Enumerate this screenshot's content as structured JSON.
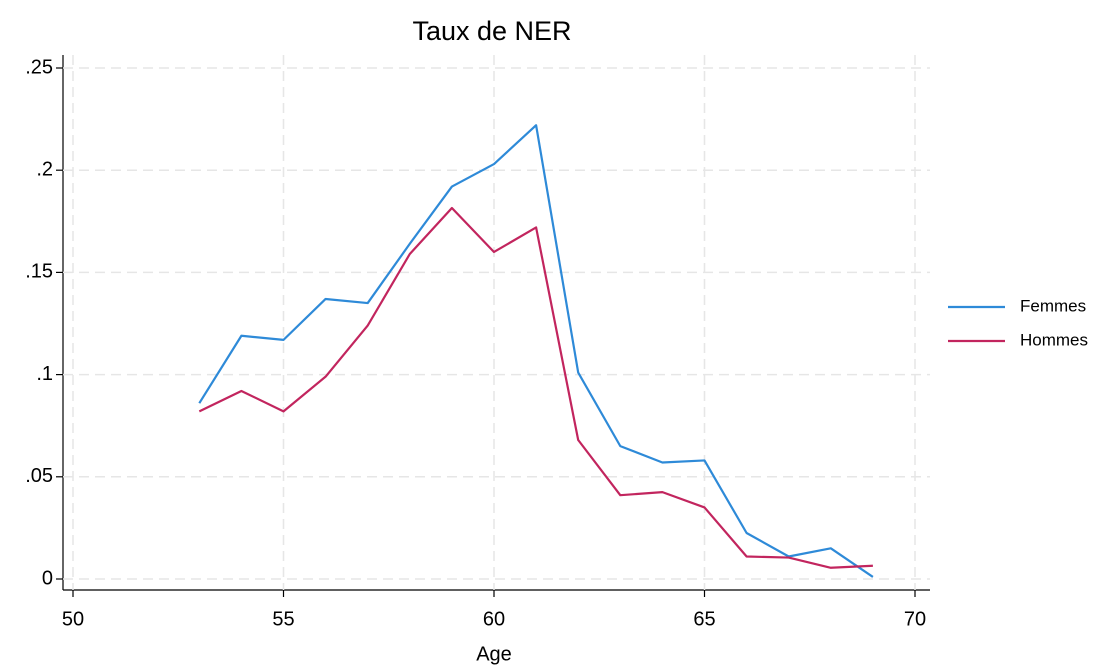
{
  "chart_data": {
    "type": "line",
    "title": "Taux de NER",
    "xlabel": "Age",
    "x": [
      53,
      54,
      55,
      56,
      57,
      58,
      59,
      60,
      61,
      62,
      63,
      64,
      65,
      66,
      67,
      68,
      69
    ],
    "series": [
      {
        "name": "Femmes",
        "color": "#2e8ad8",
        "values": [
          0.086,
          0.119,
          0.117,
          0.137,
          0.135,
          0.164,
          0.192,
          0.203,
          0.222,
          0.101,
          0.065,
          0.057,
          0.058,
          0.0225,
          0.011,
          0.015,
          0.001
        ]
      },
      {
        "name": "Hommes",
        "color": "#c2255e",
        "values": [
          0.082,
          0.092,
          0.082,
          0.099,
          0.124,
          0.159,
          0.1815,
          0.16,
          0.172,
          0.068,
          0.041,
          0.0425,
          0.035,
          0.011,
          0.0105,
          0.0055,
          0.0065
        ]
      }
    ],
    "xlim": [
      50,
      70
    ],
    "xticks": [
      50,
      55,
      60,
      65,
      70
    ],
    "ylim": [
      0,
      0.25
    ],
    "yticks": [
      0,
      {
        "value": 0.05,
        "label": ".05"
      },
      {
        "value": 0.1,
        "label": ".1"
      },
      {
        "value": 0.15,
        "label": ".15"
      },
      {
        "value": 0.2,
        "label": ".2"
      },
      {
        "value": 0.25,
        "label": ".25"
      }
    ],
    "grid": true,
    "legend": "right"
  }
}
